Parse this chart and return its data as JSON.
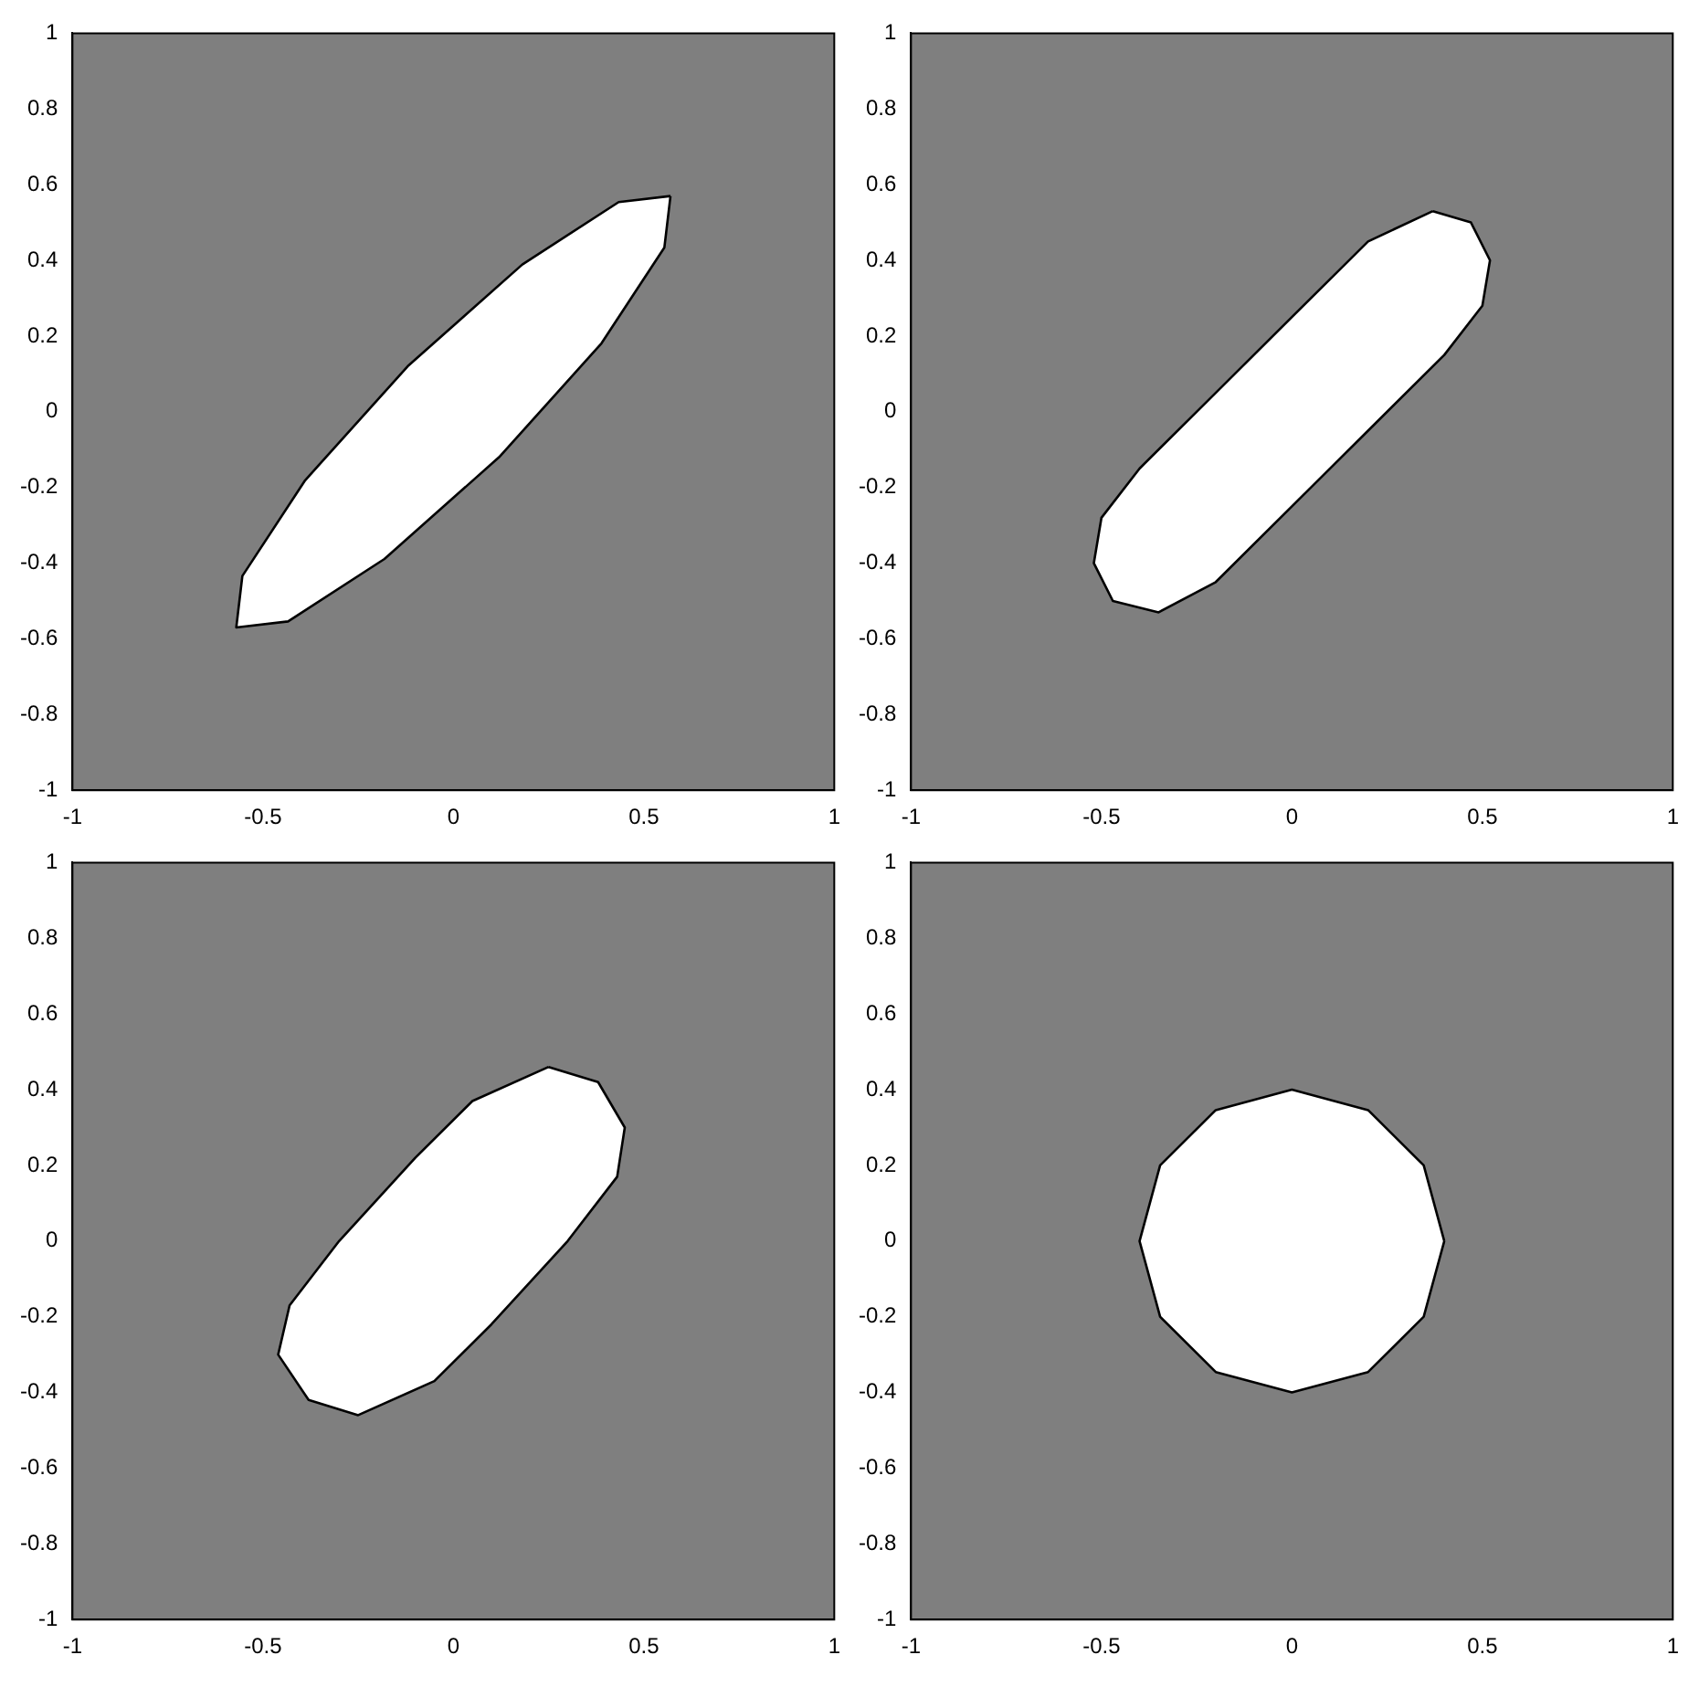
{
  "chart_data": [
    {
      "type": "area",
      "xlim": [
        -1,
        1
      ],
      "ylim": [
        -1,
        1
      ],
      "xticks": [
        -1,
        -0.5,
        0,
        0.5,
        1
      ],
      "yticks": [
        -1,
        -0.8,
        -0.6,
        -0.4,
        -0.2,
        0,
        0.2,
        0.4,
        0.6,
        0.8,
        1
      ],
      "series": [
        {
          "color": "#000000",
          "x": [
            0.57,
            0.434,
            0.181,
            -0.12,
            -0.389,
            -0.554,
            -0.57,
            -0.434,
            -0.181,
            0.12,
            0.389,
            0.554,
            0.57
          ],
          "values": [
            0.57,
            0.554,
            0.389,
            0.12,
            -0.181,
            -0.434,
            -0.57,
            -0.554,
            -0.389,
            -0.12,
            0.181,
            0.434,
            0.57
          ]
        }
      ]
    },
    {
      "type": "area",
      "xlim": [
        -1,
        1
      ],
      "ylim": [
        -1,
        1
      ],
      "xticks": [
        -1,
        -0.5,
        0,
        0.5,
        1
      ],
      "yticks": [
        -1,
        -0.8,
        -0.6,
        -0.4,
        -0.2,
        0,
        0.2,
        0.4,
        0.6,
        0.8,
        1
      ],
      "series": [
        {
          "color": "#000000",
          "x": [
            0.37,
            0.47,
            0.52,
            0.5,
            0.4,
            0.2,
            0,
            -0.2,
            -0.35,
            -0.47,
            -0.52,
            -0.5,
            -0.4,
            -0.2,
            0,
            0.2,
            0.37
          ],
          "values": [
            0.53,
            0.5,
            0.4,
            0.28,
            0.15,
            -0.05,
            -0.25,
            -0.45,
            -0.53,
            -0.5,
            -0.4,
            -0.28,
            -0.15,
            0.05,
            0.25,
            0.45,
            0.53
          ]
        }
      ]
    },
    {
      "type": "area",
      "xlim": [
        -1,
        1
      ],
      "ylim": [
        -1,
        1
      ],
      "xticks": [
        -1,
        -0.5,
        0,
        0.5,
        1
      ],
      "yticks": [
        -1,
        -0.8,
        -0.6,
        -0.4,
        -0.2,
        0,
        0.2,
        0.4,
        0.6,
        0.8,
        1
      ],
      "series": [
        {
          "color": "#000000",
          "x": [
            0.25,
            0.38,
            0.45,
            0.43,
            0.3,
            0.1,
            -0.05,
            -0.25,
            -0.38,
            -0.46,
            -0.43,
            -0.3,
            -0.1,
            0.05,
            0.25
          ],
          "values": [
            0.46,
            0.42,
            0.3,
            0.17,
            0,
            -0.22,
            -0.37,
            -0.46,
            -0.42,
            -0.3,
            -0.17,
            0,
            0.22,
            0.37,
            0.46
          ]
        }
      ]
    },
    {
      "type": "area",
      "xlim": [
        -1,
        1
      ],
      "ylim": [
        -1,
        1
      ],
      "xticks": [
        -1,
        -0.5,
        0,
        0.5,
        1
      ],
      "yticks": [
        -1,
        -0.8,
        -0.6,
        -0.4,
        -0.2,
        0,
        0.2,
        0.4,
        0.6,
        0.8,
        1
      ],
      "series": [
        {
          "color": "#000000",
          "x": [
            0.4,
            0.346,
            0.2,
            0,
            -0.2,
            -0.346,
            -0.4,
            -0.346,
            -0.2,
            0,
            0.2,
            0.346,
            0.4
          ],
          "values": [
            0,
            0.2,
            0.346,
            0.4,
            0.346,
            0.2,
            0,
            -0.2,
            -0.346,
            -0.4,
            -0.346,
            -0.2,
            0
          ]
        }
      ]
    }
  ]
}
